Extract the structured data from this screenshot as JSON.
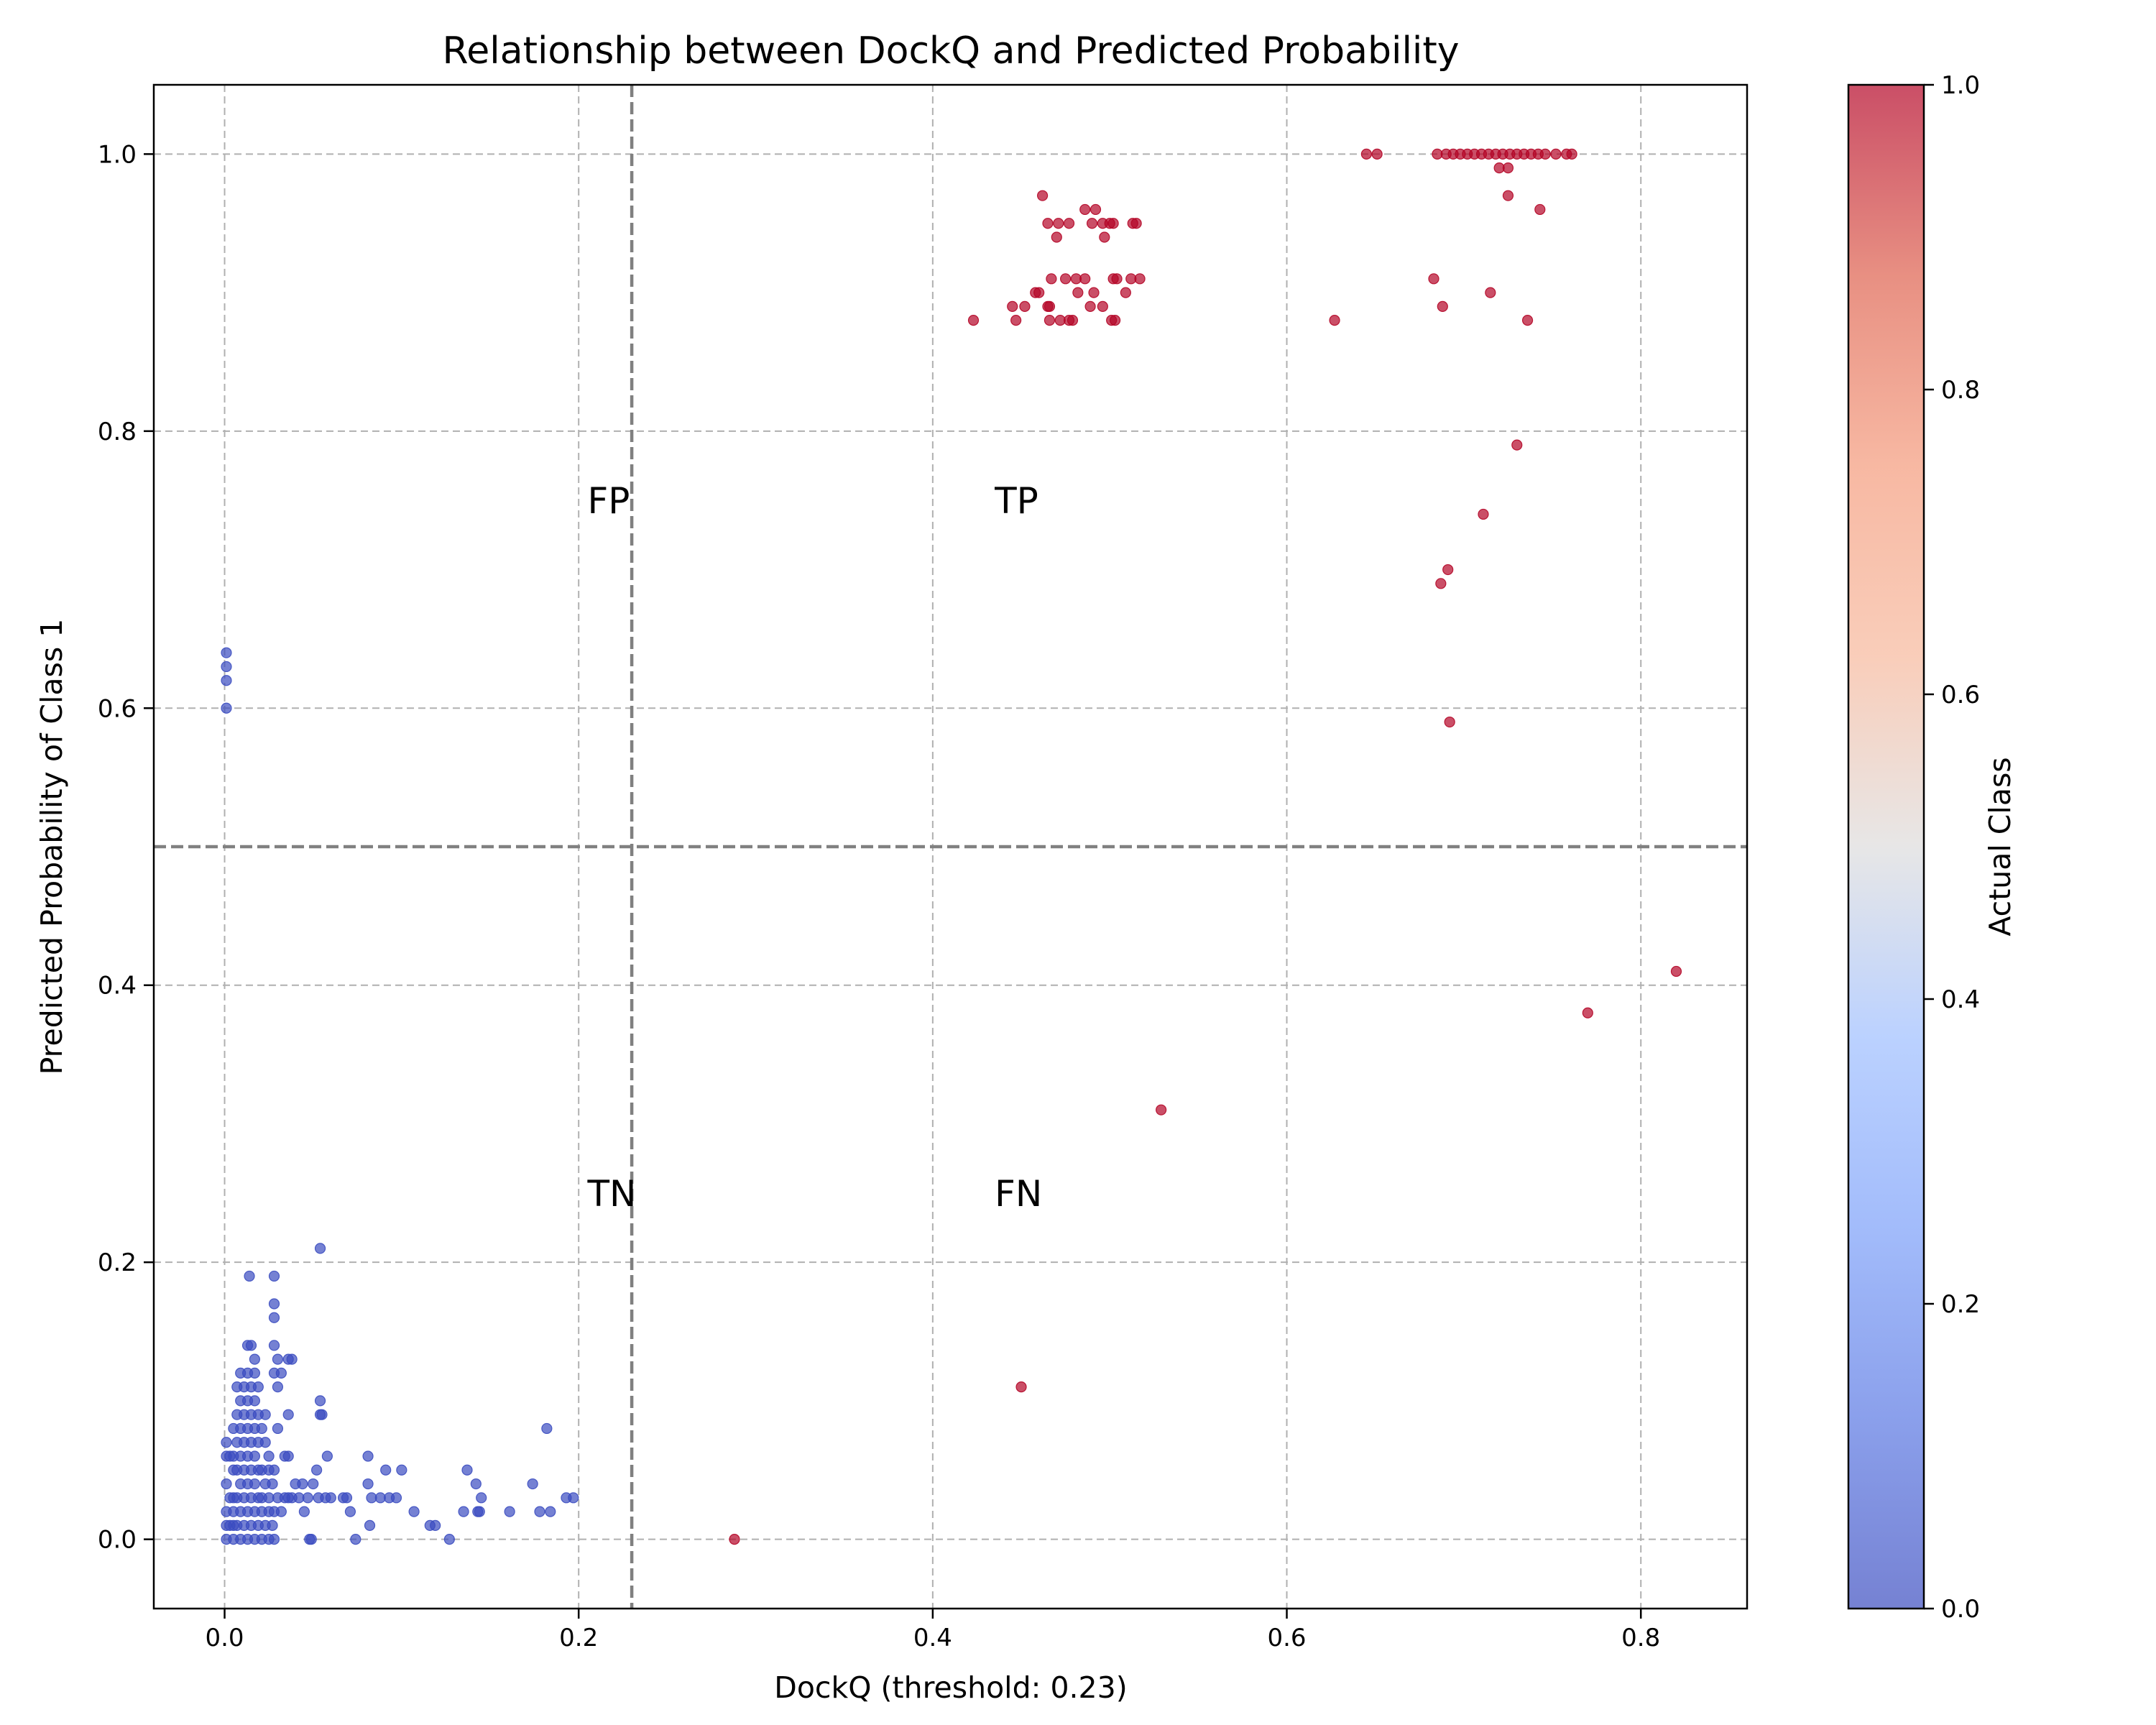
{
  "chart_data": {
    "type": "scatter",
    "title": "Relationship between DockQ and Predicted Probability",
    "xlabel": "DockQ (threshold: 0.23)",
    "ylabel": "Predicted Probability of Class 1",
    "xlim": [
      -0.04,
      0.86
    ],
    "ylim": [
      -0.05,
      1.05
    ],
    "x_ticks": [
      0.0,
      0.2,
      0.4,
      0.6,
      0.8
    ],
    "y_ticks": [
      0.0,
      0.2,
      0.4,
      0.6,
      0.8,
      1.0
    ],
    "x_tick_labels": [
      "0.0",
      "0.2",
      "0.4",
      "0.6",
      "0.8"
    ],
    "y_tick_labels": [
      "0.0",
      "0.2",
      "0.4",
      "0.6",
      "0.8",
      "1.0"
    ],
    "grid": true,
    "threshold_x": 0.23,
    "threshold_y": 0.5,
    "quadrant_labels": [
      {
        "text": "FP",
        "x": 0.205,
        "y": 0.75
      },
      {
        "text": "TP",
        "x": 0.435,
        "y": 0.75
      },
      {
        "text": "TN",
        "x": 0.205,
        "y": 0.25
      },
      {
        "text": "FN",
        "x": 0.435,
        "y": 0.25
      }
    ],
    "colorbar": {
      "label": "Actual Class",
      "colormap": "coolwarm",
      "range": [
        0.0,
        1.0
      ],
      "ticks": [
        0.0,
        0.2,
        0.4,
        0.6,
        0.8,
        1.0
      ],
      "tick_labels": [
        "0.0",
        "0.2",
        "0.4",
        "0.6",
        "0.8",
        "1.0"
      ]
    },
    "colors": {
      "class_0": "#3b4cc0",
      "class_1": "#b40426"
    },
    "series": [
      {
        "class": 0,
        "points": [
          [
            0.001,
            0.64
          ],
          [
            0.001,
            0.63
          ],
          [
            0.001,
            0.62
          ],
          [
            0.001,
            0.6
          ],
          [
            0.001,
            0.07
          ],
          [
            0.001,
            0.06
          ],
          [
            0.001,
            0.04
          ],
          [
            0.001,
            0.02
          ],
          [
            0.001,
            0.01
          ],
          [
            0.001,
            0.0
          ],
          [
            0.003,
            0.06
          ],
          [
            0.003,
            0.03
          ],
          [
            0.003,
            0.01
          ],
          [
            0.005,
            0.08
          ],
          [
            0.005,
            0.06
          ],
          [
            0.005,
            0.05
          ],
          [
            0.005,
            0.03
          ],
          [
            0.005,
            0.02
          ],
          [
            0.005,
            0.01
          ],
          [
            0.005,
            0.0
          ],
          [
            0.007,
            0.11
          ],
          [
            0.007,
            0.09
          ],
          [
            0.007,
            0.07
          ],
          [
            0.007,
            0.05
          ],
          [
            0.007,
            0.03
          ],
          [
            0.007,
            0.01
          ],
          [
            0.009,
            0.12
          ],
          [
            0.009,
            0.1
          ],
          [
            0.009,
            0.08
          ],
          [
            0.009,
            0.06
          ],
          [
            0.009,
            0.04
          ],
          [
            0.009,
            0.02
          ],
          [
            0.009,
            0.0
          ],
          [
            0.011,
            0.11
          ],
          [
            0.011,
            0.09
          ],
          [
            0.011,
            0.07
          ],
          [
            0.011,
            0.05
          ],
          [
            0.011,
            0.03
          ],
          [
            0.011,
            0.01
          ],
          [
            0.013,
            0.14
          ],
          [
            0.013,
            0.12
          ],
          [
            0.013,
            0.1
          ],
          [
            0.013,
            0.08
          ],
          [
            0.013,
            0.06
          ],
          [
            0.013,
            0.04
          ],
          [
            0.013,
            0.02
          ],
          [
            0.013,
            0.0
          ],
          [
            0.014,
            0.19
          ],
          [
            0.015,
            0.14
          ],
          [
            0.015,
            0.11
          ],
          [
            0.015,
            0.09
          ],
          [
            0.015,
            0.07
          ],
          [
            0.015,
            0.05
          ],
          [
            0.015,
            0.03
          ],
          [
            0.015,
            0.01
          ],
          [
            0.017,
            0.13
          ],
          [
            0.017,
            0.12
          ],
          [
            0.017,
            0.1
          ],
          [
            0.017,
            0.08
          ],
          [
            0.017,
            0.06
          ],
          [
            0.017,
            0.04
          ],
          [
            0.017,
            0.02
          ],
          [
            0.017,
            0.0
          ],
          [
            0.019,
            0.11
          ],
          [
            0.019,
            0.09
          ],
          [
            0.019,
            0.07
          ],
          [
            0.019,
            0.05
          ],
          [
            0.019,
            0.03
          ],
          [
            0.019,
            0.01
          ],
          [
            0.021,
            0.08
          ],
          [
            0.021,
            0.05
          ],
          [
            0.021,
            0.03
          ],
          [
            0.021,
            0.02
          ],
          [
            0.021,
            0.0
          ],
          [
            0.023,
            0.09
          ],
          [
            0.023,
            0.07
          ],
          [
            0.023,
            0.04
          ],
          [
            0.023,
            0.01
          ],
          [
            0.025,
            0.06
          ],
          [
            0.025,
            0.05
          ],
          [
            0.025,
            0.03
          ],
          [
            0.025,
            0.02
          ],
          [
            0.025,
            0.0
          ],
          [
            0.027,
            0.04
          ],
          [
            0.027,
            0.01
          ],
          [
            0.028,
            0.19
          ],
          [
            0.028,
            0.17
          ],
          [
            0.028,
            0.16
          ],
          [
            0.028,
            0.14
          ],
          [
            0.028,
            0.12
          ],
          [
            0.028,
            0.05
          ],
          [
            0.028,
            0.02
          ],
          [
            0.028,
            0.0
          ],
          [
            0.03,
            0.13
          ],
          [
            0.03,
            0.11
          ],
          [
            0.03,
            0.08
          ],
          [
            0.03,
            0.03
          ],
          [
            0.032,
            0.12
          ],
          [
            0.032,
            0.02
          ],
          [
            0.034,
            0.06
          ],
          [
            0.034,
            0.03
          ],
          [
            0.036,
            0.13
          ],
          [
            0.036,
            0.09
          ],
          [
            0.036,
            0.06
          ],
          [
            0.036,
            0.03
          ],
          [
            0.038,
            0.13
          ],
          [
            0.038,
            0.03
          ],
          [
            0.04,
            0.04
          ],
          [
            0.042,
            0.03
          ],
          [
            0.044,
            0.04
          ],
          [
            0.045,
            0.02
          ],
          [
            0.047,
            0.03
          ],
          [
            0.048,
            0.0
          ],
          [
            0.049,
            0.0
          ],
          [
            0.05,
            0.04
          ],
          [
            0.052,
            0.05
          ],
          [
            0.053,
            0.03
          ],
          [
            0.054,
            0.21
          ],
          [
            0.054,
            0.1
          ],
          [
            0.054,
            0.09
          ],
          [
            0.055,
            0.09
          ],
          [
            0.057,
            0.03
          ],
          [
            0.058,
            0.06
          ],
          [
            0.06,
            0.03
          ],
          [
            0.067,
            0.03
          ],
          [
            0.069,
            0.03
          ],
          [
            0.071,
            0.02
          ],
          [
            0.074,
            0.0
          ],
          [
            0.081,
            0.06
          ],
          [
            0.081,
            0.04
          ],
          [
            0.082,
            0.01
          ],
          [
            0.083,
            0.03
          ],
          [
            0.088,
            0.03
          ],
          [
            0.091,
            0.05
          ],
          [
            0.093,
            0.03
          ],
          [
            0.097,
            0.03
          ],
          [
            0.1,
            0.05
          ],
          [
            0.107,
            0.02
          ],
          [
            0.116,
            0.01
          ],
          [
            0.119,
            0.01
          ],
          [
            0.127,
            0.0
          ],
          [
            0.135,
            0.02
          ],
          [
            0.137,
            0.05
          ],
          [
            0.142,
            0.04
          ],
          [
            0.143,
            0.02
          ],
          [
            0.145,
            0.03
          ],
          [
            0.144,
            0.02
          ],
          [
            0.161,
            0.02
          ],
          [
            0.174,
            0.04
          ],
          [
            0.178,
            0.02
          ],
          [
            0.182,
            0.08
          ],
          [
            0.184,
            0.02
          ],
          [
            0.193,
            0.03
          ],
          [
            0.197,
            0.03
          ]
        ]
      },
      {
        "class": 1,
        "points": [
          [
            0.288,
            0.0
          ],
          [
            0.45,
            0.11
          ],
          [
            0.529,
            0.31
          ],
          [
            0.77,
            0.38
          ],
          [
            0.82,
            0.41
          ],
          [
            0.692,
            0.59
          ],
          [
            0.687,
            0.69
          ],
          [
            0.691,
            0.7
          ],
          [
            0.711,
            0.74
          ],
          [
            0.73,
            0.79
          ],
          [
            0.423,
            0.88
          ],
          [
            0.447,
            0.88
          ],
          [
            0.466,
            0.88
          ],
          [
            0.472,
            0.88
          ],
          [
            0.477,
            0.88
          ],
          [
            0.479,
            0.88
          ],
          [
            0.501,
            0.88
          ],
          [
            0.503,
            0.88
          ],
          [
            0.627,
            0.88
          ],
          [
            0.736,
            0.88
          ],
          [
            0.445,
            0.89
          ],
          [
            0.452,
            0.89
          ],
          [
            0.465,
            0.89
          ],
          [
            0.466,
            0.89
          ],
          [
            0.489,
            0.89
          ],
          [
            0.496,
            0.89
          ],
          [
            0.688,
            0.89
          ],
          [
            0.458,
            0.9
          ],
          [
            0.46,
            0.9
          ],
          [
            0.482,
            0.9
          ],
          [
            0.491,
            0.9
          ],
          [
            0.509,
            0.9
          ],
          [
            0.715,
            0.9
          ],
          [
            0.467,
            0.91
          ],
          [
            0.475,
            0.91
          ],
          [
            0.481,
            0.91
          ],
          [
            0.486,
            0.91
          ],
          [
            0.502,
            0.91
          ],
          [
            0.504,
            0.91
          ],
          [
            0.512,
            0.91
          ],
          [
            0.517,
            0.91
          ],
          [
            0.683,
            0.91
          ],
          [
            0.47,
            0.94
          ],
          [
            0.497,
            0.94
          ],
          [
            0.465,
            0.95
          ],
          [
            0.471,
            0.95
          ],
          [
            0.477,
            0.95
          ],
          [
            0.49,
            0.95
          ],
          [
            0.496,
            0.95
          ],
          [
            0.5,
            0.95
          ],
          [
            0.502,
            0.95
          ],
          [
            0.513,
            0.95
          ],
          [
            0.515,
            0.95
          ],
          [
            0.486,
            0.96
          ],
          [
            0.492,
            0.96
          ],
          [
            0.743,
            0.96
          ],
          [
            0.462,
            0.97
          ],
          [
            0.725,
            0.97
          ],
          [
            0.72,
            0.99
          ],
          [
            0.725,
            0.99
          ],
          [
            0.645,
            1.0
          ],
          [
            0.651,
            1.0
          ],
          [
            0.685,
            1.0
          ],
          [
            0.69,
            1.0
          ],
          [
            0.694,
            1.0
          ],
          [
            0.698,
            1.0
          ],
          [
            0.702,
            1.0
          ],
          [
            0.706,
            1.0
          ],
          [
            0.71,
            1.0
          ],
          [
            0.714,
            1.0
          ],
          [
            0.718,
            1.0
          ],
          [
            0.722,
            1.0
          ],
          [
            0.726,
            1.0
          ],
          [
            0.73,
            1.0
          ],
          [
            0.734,
            1.0
          ],
          [
            0.738,
            1.0
          ],
          [
            0.742,
            1.0
          ],
          [
            0.746,
            1.0
          ],
          [
            0.752,
            1.0
          ],
          [
            0.758,
            1.0
          ],
          [
            0.761,
            1.0
          ]
        ]
      }
    ]
  }
}
